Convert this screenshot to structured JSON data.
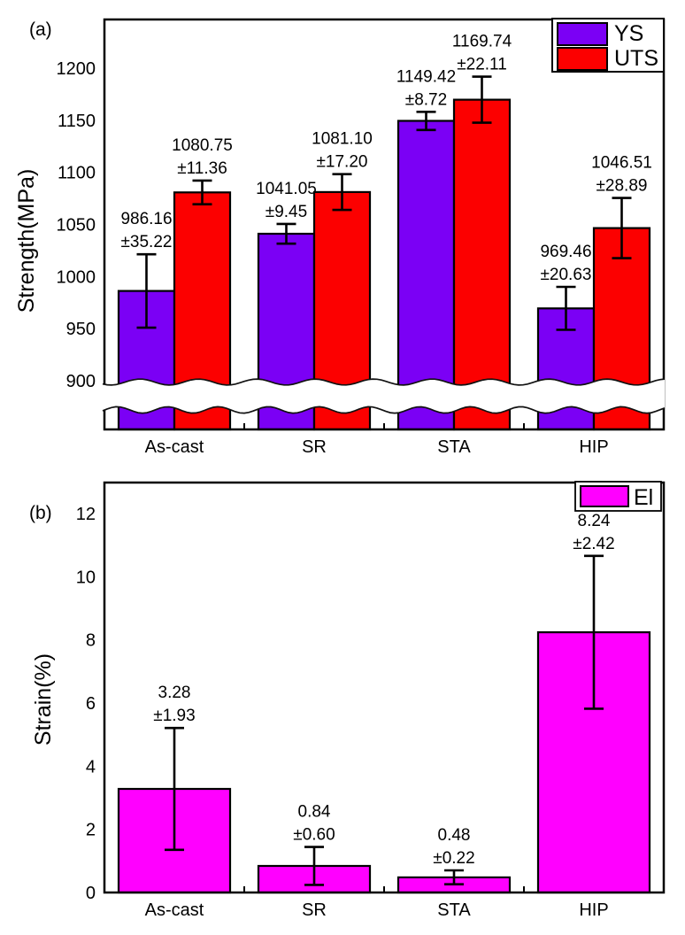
{
  "figure": {
    "background": "#ffffff",
    "panel_labels": [
      "(a)",
      "(b)"
    ]
  },
  "chart_data": [
    {
      "type": "bar",
      "panel": "(a)",
      "title": "",
      "xlabel": "",
      "ylabel": "Strength(MPa)",
      "categories": [
        "As-cast",
        "SR",
        "STA",
        "HIP"
      ],
      "series": [
        {
          "name": "YS",
          "color": "#7B00F5",
          "values": [
            986.16,
            1041.05,
            1149.42,
            969.46
          ],
          "errors": [
            35.22,
            9.45,
            8.72,
            20.63
          ],
          "labels": [
            [
              "986.16",
              "±35.22"
            ],
            [
              "1041.05",
              "±9.45"
            ],
            [
              "1149.42",
              "±8.72"
            ],
            [
              "969.46",
              "±20.63"
            ]
          ]
        },
        {
          "name": "UTS",
          "color": "#FC0000",
          "values": [
            1080.75,
            1081.1,
            1169.74,
            1046.51
          ],
          "errors": [
            11.36,
            17.2,
            22.11,
            28.89
          ],
          "labels": [
            [
              "1080.75",
              "±11.36"
            ],
            [
              "1081.10",
              "±17.20"
            ],
            [
              "1169.74",
              "±22.11"
            ],
            [
              "1046.51",
              "±28.89"
            ]
          ]
        }
      ],
      "yticks": [
        900,
        950,
        1000,
        1050,
        1100,
        1150,
        1200
      ],
      "ylim": [
        900,
        1246
      ],
      "axis_break": {
        "below": 900,
        "style": "wavy-band"
      },
      "legend": {
        "position": "top-right",
        "entries": [
          "YS",
          "UTS"
        ]
      },
      "grid": false,
      "error_bars": true,
      "axis_color": "#000000"
    },
    {
      "type": "bar",
      "panel": "(b)",
      "title": "",
      "xlabel": "",
      "ylabel": "Strain(%)",
      "categories": [
        "As-cast",
        "SR",
        "STA",
        "HIP"
      ],
      "series": [
        {
          "name": "El",
          "color": "#FF00FF",
          "values": [
            3.28,
            0.84,
            0.48,
            8.24
          ],
          "errors": [
            1.93,
            0.6,
            0.22,
            2.42
          ],
          "labels": [
            [
              "3.28",
              "±1.93"
            ],
            [
              "0.84",
              "±0.60"
            ],
            [
              "0.48",
              "±0.22"
            ],
            [
              "8.24",
              "±2.42"
            ]
          ]
        }
      ],
      "yticks": [
        0,
        2,
        4,
        6,
        8,
        10,
        12
      ],
      "ylim": [
        0,
        13
      ],
      "legend": {
        "position": "top-right",
        "entries": [
          "El"
        ]
      },
      "grid": false,
      "error_bars": true,
      "axis_color": "#000000"
    }
  ]
}
